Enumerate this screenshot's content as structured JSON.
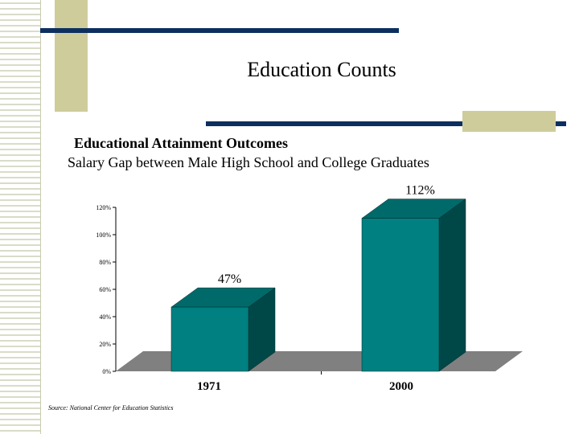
{
  "slide": {
    "title": "Education Counts",
    "subtitle": "Educational Attainment Outcomes",
    "caption": "Salary Gap between Male High School and College Graduates",
    "source": "Source: National Center for Education Statistics"
  },
  "chart_data": {
    "type": "bar",
    "style": "3d",
    "categories": [
      "1971",
      "2000"
    ],
    "values": [
      47,
      112
    ],
    "data_labels": [
      "47%",
      "112%"
    ],
    "ylim": [
      0,
      120
    ],
    "y_ticks": [
      0,
      20,
      40,
      60,
      80,
      100,
      120
    ],
    "y_tick_labels": [
      "0%",
      "20%",
      "40%",
      "60%",
      "80%",
      "100%",
      "120%"
    ],
    "grid": false,
    "legend": "none",
    "title": "",
    "xlabel": "",
    "ylabel": "",
    "colors": {
      "bar_front": "#008080",
      "bar_side": "#004848",
      "bar_top": "#006a6a",
      "floor": "#808080",
      "axis": "#000000"
    }
  },
  "decorations": {
    "line_color": "#0d2f5f",
    "block_color": "#cfcc9c"
  }
}
